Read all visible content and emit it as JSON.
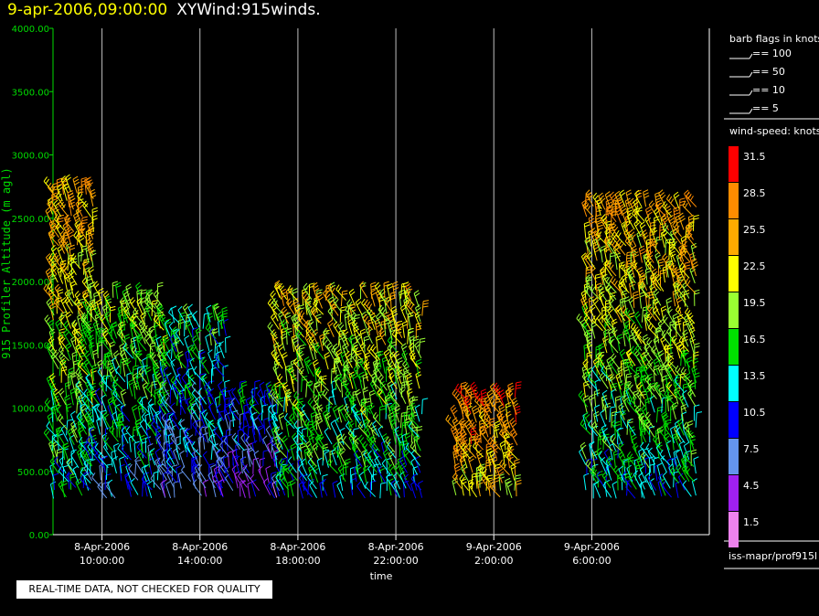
{
  "header": {
    "datetime": "9-apr-2006,09:00:00",
    "product": "XYWind:915winds."
  },
  "chart_data": {
    "type": "wind-barb",
    "ylabel": "915 Profiler Altitude (m agl)",
    "xlabel": "time",
    "ylim": [
      0,
      4000
    ],
    "y_ticks": [
      "0.00",
      "500.00",
      "1000.00",
      "1500.00",
      "2000.00",
      "2500.00",
      "3000.00",
      "3500.00",
      "4000.00"
    ],
    "x_range_hours": [
      8.0,
      34.8
    ],
    "x_ticks": [
      {
        "hour": 10,
        "date": "8-Apr-2006",
        "time": "10:00:00"
      },
      {
        "hour": 14,
        "date": "8-Apr-2006",
        "time": "14:00:00"
      },
      {
        "hour": 18,
        "date": "8-Apr-2006",
        "time": "18:00:00"
      },
      {
        "hour": 22,
        "date": "8-Apr-2006",
        "time": "22:00:00"
      },
      {
        "hour": 26,
        "date": "9-Apr-2006",
        "time": "2:00:00"
      },
      {
        "hour": 30,
        "date": "9-Apr-2006",
        "time": "6:00:00"
      }
    ],
    "grid_x": true,
    "speed_legend": {
      "title": "wind-speed: knots",
      "levels": [
        {
          "label": "31.5",
          "color": "#ff0000"
        },
        {
          "label": "28.5",
          "color": "#ff8c00"
        },
        {
          "label": "25.5",
          "color": "#ffaa00"
        },
        {
          "label": "22.5",
          "color": "#ffff00"
        },
        {
          "label": "19.5",
          "color": "#9aff32"
        },
        {
          "label": "16.5",
          "color": "#00e000"
        },
        {
          "label": "13.5",
          "color": "#00ffff"
        },
        {
          "label": "10.5",
          "color": "#0000ff"
        },
        {
          "label": "7.5",
          "color": "#6495ed"
        },
        {
          "label": "4.5",
          "color": "#a020f0"
        },
        {
          "label": "1.5",
          "color": "#ee82ee"
        }
      ]
    },
    "barb_legend": {
      "title": "barb flags in knots",
      "items": [
        "== 100",
        "== 50",
        "== 10",
        "== 5"
      ]
    },
    "series": [
      {
        "time_range": [
          8.0,
          9.6
        ],
        "alt_range": [
          300,
          2700
        ],
        "speed_range": [
          8,
          32
        ]
      },
      {
        "time_range": [
          9.6,
          12.6
        ],
        "alt_range": [
          300,
          1900
        ],
        "speed_range": [
          5,
          26
        ]
      },
      {
        "time_range": [
          12.6,
          15.0
        ],
        "alt_range": [
          300,
          1700
        ],
        "speed_range": [
          5,
          20
        ]
      },
      {
        "time_range": [
          15.0,
          17.2
        ],
        "alt_range": [
          300,
          1100
        ],
        "speed_range": [
          3,
          16
        ]
      },
      {
        "time_range": [
          17.2,
          23.0
        ],
        "alt_range": [
          300,
          1900
        ],
        "speed_range": [
          8,
          29
        ]
      },
      {
        "time_range": [
          24.5,
          27.0
        ],
        "alt_range": [
          300,
          1100
        ],
        "speed_range": [
          20,
          32
        ]
      },
      {
        "time_range": [
          29.8,
          34.4
        ],
        "alt_range": [
          300,
          2600
        ],
        "speed_range": [
          8,
          32
        ]
      }
    ]
  },
  "source": "iss-mapr/prof915l",
  "qc_notice": "REAL-TIME DATA, NOT CHECKED FOR QUALITY"
}
